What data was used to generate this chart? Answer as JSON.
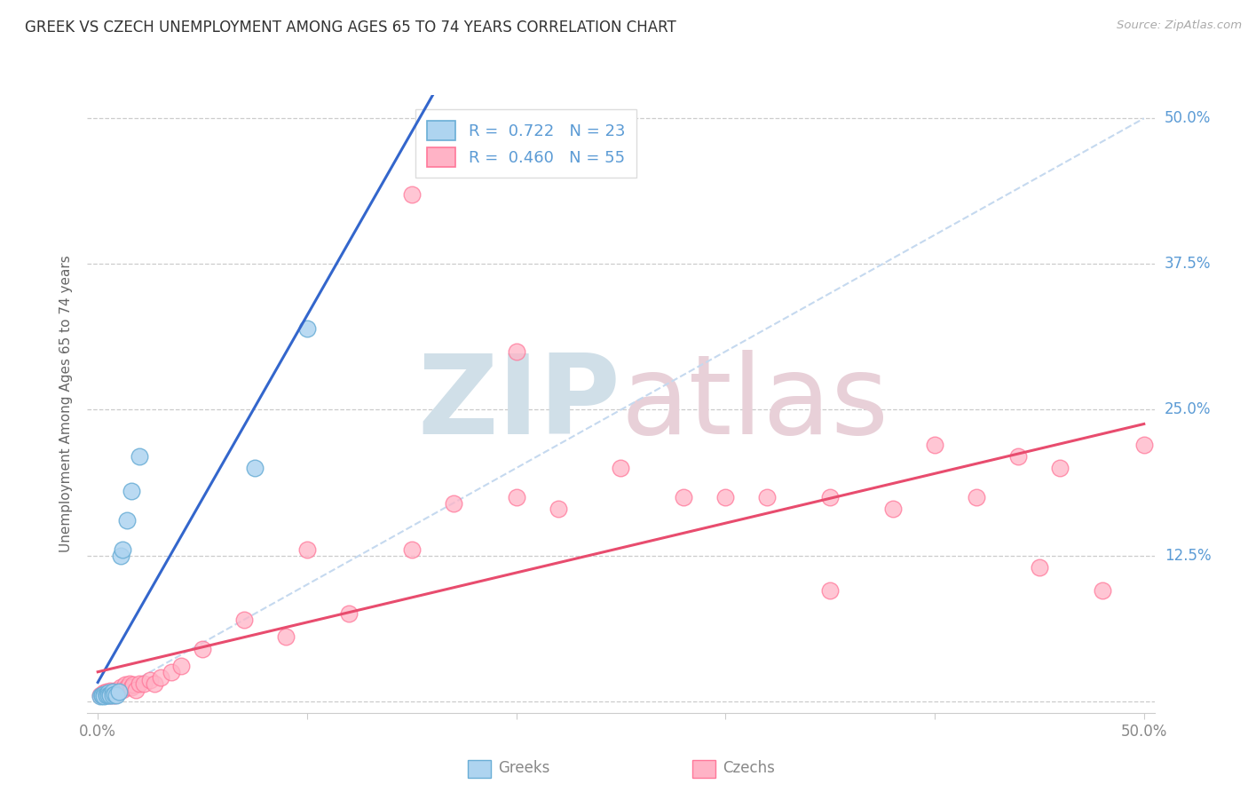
{
  "title": "GREEK VS CZECH UNEMPLOYMENT AMONG AGES 65 TO 74 YEARS CORRELATION CHART",
  "source": "Source: ZipAtlas.com",
  "ylabel": "Unemployment Among Ages 65 to 74 years",
  "xlim": [
    -0.005,
    0.505
  ],
  "ylim": [
    -0.01,
    0.52
  ],
  "background_color": "#ffffff",
  "grid_color": "#cccccc",
  "title_color": "#333333",
  "right_label_color": "#5b9bd5",
  "greek_color": "#aed4f0",
  "czech_color": "#ffb3c6",
  "greek_edge_color": "#6aaed6",
  "czech_edge_color": "#ff7799",
  "greek_line_color": "#3366cc",
  "czech_line_color": "#e84c6e",
  "diag_color": "#c5d9ef",
  "legend_greek_R": "0.722",
  "legend_greek_N": "23",
  "legend_czech_R": "0.460",
  "legend_czech_N": "55",
  "watermark_color": "#d0dfe8",
  "greeks_x": [
    0.001,
    0.002,
    0.002,
    0.003,
    0.003,
    0.004,
    0.004,
    0.005,
    0.005,
    0.006,
    0.006,
    0.007,
    0.007,
    0.008,
    0.009,
    0.01,
    0.011,
    0.012,
    0.014,
    0.016,
    0.02,
    0.075,
    0.1
  ],
  "greeks_y": [
    0.004,
    0.005,
    0.005,
    0.006,
    0.004,
    0.006,
    0.005,
    0.007,
    0.005,
    0.006,
    0.005,
    0.008,
    0.005,
    0.006,
    0.005,
    0.008,
    0.125,
    0.13,
    0.155,
    0.18,
    0.21,
    0.2,
    0.32
  ],
  "czechs_x": [
    0.001,
    0.002,
    0.003,
    0.003,
    0.004,
    0.005,
    0.005,
    0.006,
    0.006,
    0.007,
    0.007,
    0.008,
    0.008,
    0.009,
    0.01,
    0.011,
    0.012,
    0.013,
    0.014,
    0.015,
    0.016,
    0.017,
    0.018,
    0.02,
    0.022,
    0.025,
    0.027,
    0.03,
    0.035,
    0.04,
    0.05,
    0.07,
    0.09,
    0.12,
    0.15,
    0.17,
    0.2,
    0.22,
    0.25,
    0.28,
    0.3,
    0.32,
    0.35,
    0.38,
    0.4,
    0.42,
    0.44,
    0.46,
    0.48,
    0.5,
    0.1,
    0.15,
    0.2,
    0.35,
    0.45
  ],
  "czechs_y": [
    0.005,
    0.006,
    0.007,
    0.005,
    0.008,
    0.006,
    0.007,
    0.005,
    0.009,
    0.008,
    0.007,
    0.009,
    0.005,
    0.009,
    0.008,
    0.012,
    0.01,
    0.014,
    0.012,
    0.015,
    0.012,
    0.014,
    0.01,
    0.015,
    0.015,
    0.018,
    0.015,
    0.02,
    0.025,
    0.03,
    0.045,
    0.07,
    0.055,
    0.075,
    0.13,
    0.17,
    0.175,
    0.165,
    0.2,
    0.175,
    0.175,
    0.175,
    0.175,
    0.165,
    0.22,
    0.175,
    0.21,
    0.2,
    0.095,
    0.22,
    0.13,
    0.435,
    0.3,
    0.095,
    0.115
  ]
}
